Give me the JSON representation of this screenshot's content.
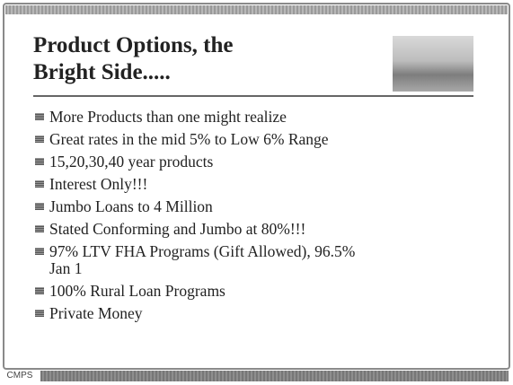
{
  "slide": {
    "title_lines": [
      "Product Options, the",
      "Bright Side....."
    ],
    "items": [
      [
        "More Products than one might realize"
      ],
      [
        "Great rates in the mid 5% to Low 6% Range"
      ],
      [
        "15,20,30,40 year products"
      ],
      [
        "Interest Only!!!"
      ],
      [
        "Jumbo Loans to 4 Million"
      ],
      [
        "Stated Conforming and Jumbo at 80%!!!"
      ],
      [
        "97% LTV FHA Programs (Gift Allowed), 96.5%",
        "Jan 1"
      ],
      [
        "100% Rural Loan Programs"
      ],
      [
        "Private Money"
      ]
    ],
    "logo": "CMPS"
  }
}
